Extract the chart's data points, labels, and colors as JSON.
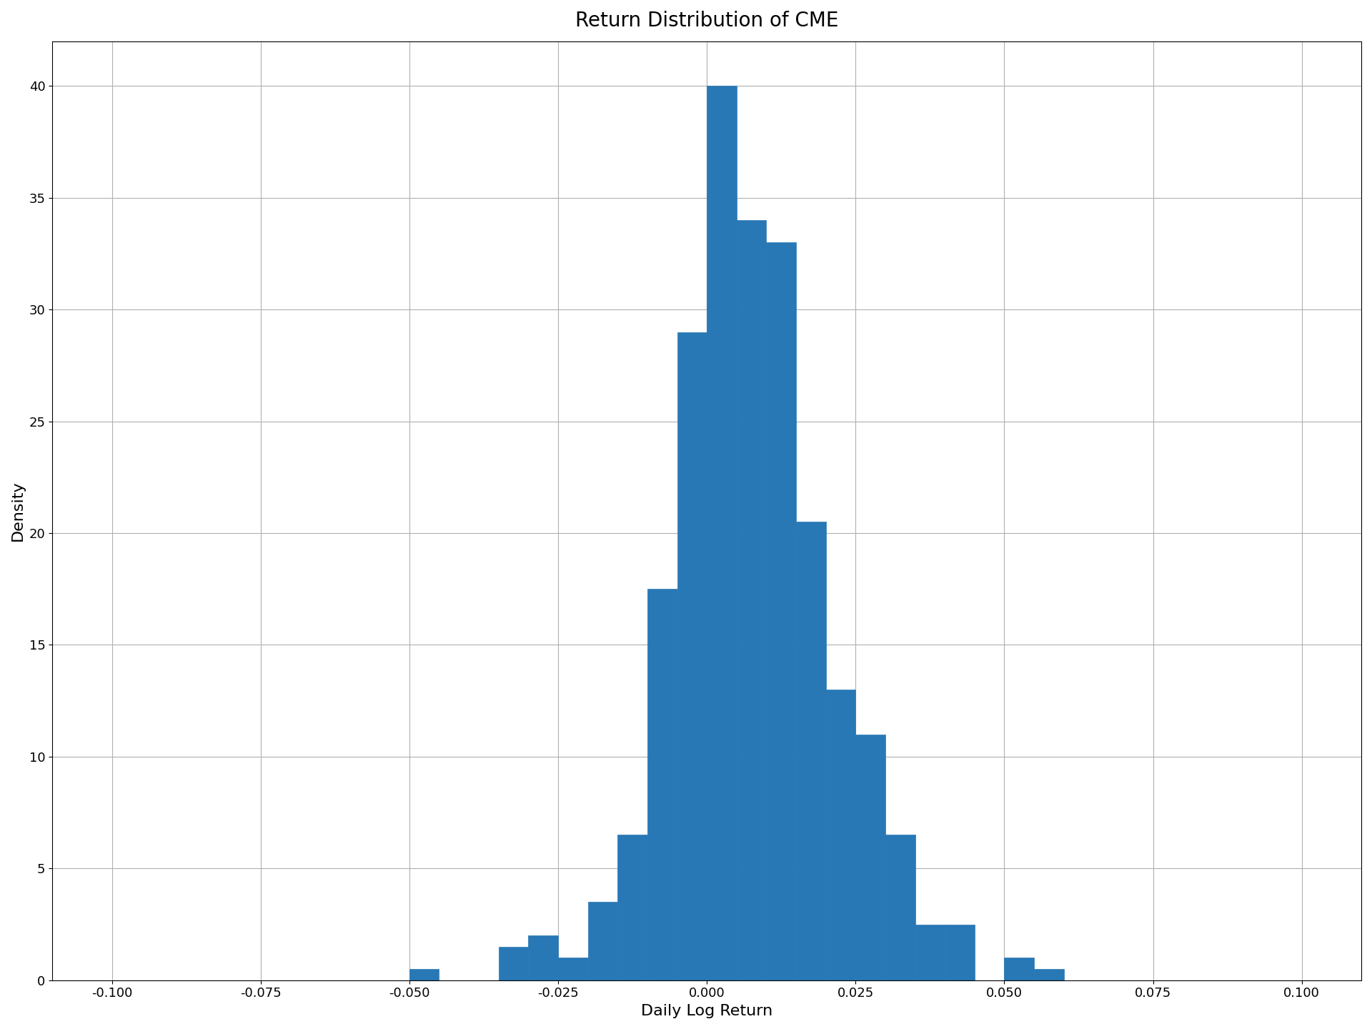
{
  "title": "Return Distribution of CME",
  "xlabel": "Daily Log Return",
  "ylabel": "Density",
  "bar_color": "#2878b5",
  "bar_edgecolor": "#2878b5",
  "xlim": [
    -0.11,
    0.11
  ],
  "ylim": [
    0,
    42
  ],
  "xticks": [
    -0.1,
    -0.075,
    -0.05,
    -0.025,
    0.0,
    0.025,
    0.05,
    0.075,
    0.1
  ],
  "yticks": [
    0,
    5,
    10,
    15,
    20,
    25,
    30,
    35,
    40
  ],
  "title_fontsize": 20,
  "label_fontsize": 16,
  "tick_fontsize": 13,
  "bin_edges": [
    -0.1,
    -0.095,
    -0.09,
    -0.085,
    -0.08,
    -0.075,
    -0.07,
    -0.065,
    -0.06,
    -0.055,
    -0.05,
    -0.045,
    -0.04,
    -0.035,
    -0.03,
    -0.025,
    -0.02,
    -0.015,
    -0.01,
    -0.005,
    0.0,
    0.005,
    0.01,
    0.015,
    0.02,
    0.025,
    0.03,
    0.035,
    0.04,
    0.045,
    0.05,
    0.055,
    0.06,
    0.065,
    0.07,
    0.075,
    0.08,
    0.085,
    0.09,
    0.095,
    0.1
  ],
  "bin_heights": [
    0.0,
    0.0,
    0.0,
    0.0,
    0.0,
    0.0,
    0.0,
    0.0,
    0.0,
    0.0,
    0.5,
    0.0,
    0.0,
    1.5,
    2.0,
    1.0,
    3.5,
    6.5,
    17.5,
    29.0,
    40.0,
    34.0,
    33.0,
    20.5,
    13.0,
    11.0,
    6.5,
    2.5,
    2.5,
    0.0,
    1.0,
    0.5,
    0.0,
    0.0,
    0.0,
    0.0,
    0.0,
    0.0,
    0.0,
    0.0
  ],
  "figsize": [
    19.2,
    14.4
  ],
  "dpi": 100
}
